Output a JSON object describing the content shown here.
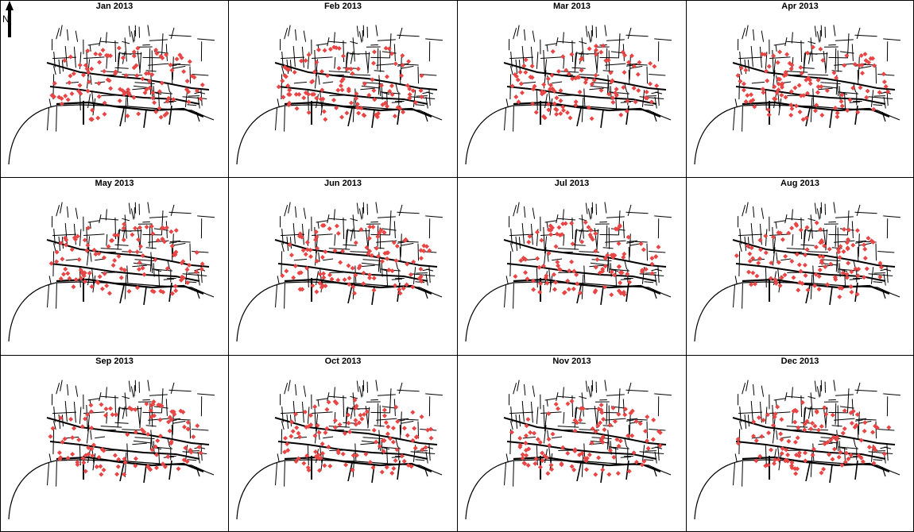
{
  "colors": {
    "points": "#e84545",
    "streets": "#000000",
    "frame": "#000000",
    "background": "#ffffff"
  },
  "north_arrow": {
    "label": "N",
    "icon": "north-arrow-icon"
  },
  "panels": [
    {
      "title": "Jan 2013",
      "seed": 11
    },
    {
      "title": "Feb 2013",
      "seed": 23
    },
    {
      "title": "Mar 2013",
      "seed": 37
    },
    {
      "title": "Apr 2013",
      "seed": 41
    },
    {
      "title": "May 2013",
      "seed": 53
    },
    {
      "title": "Jun 2013",
      "seed": 67
    },
    {
      "title": "Jul 2013",
      "seed": 71
    },
    {
      "title": "Aug 2013",
      "seed": 83
    },
    {
      "title": "Sep 2013",
      "seed": 97
    },
    {
      "title": "Oct 2013",
      "seed": 101
    },
    {
      "title": "Nov 2013",
      "seed": 113
    },
    {
      "title": "Dec 2013",
      "seed": 127
    }
  ]
}
